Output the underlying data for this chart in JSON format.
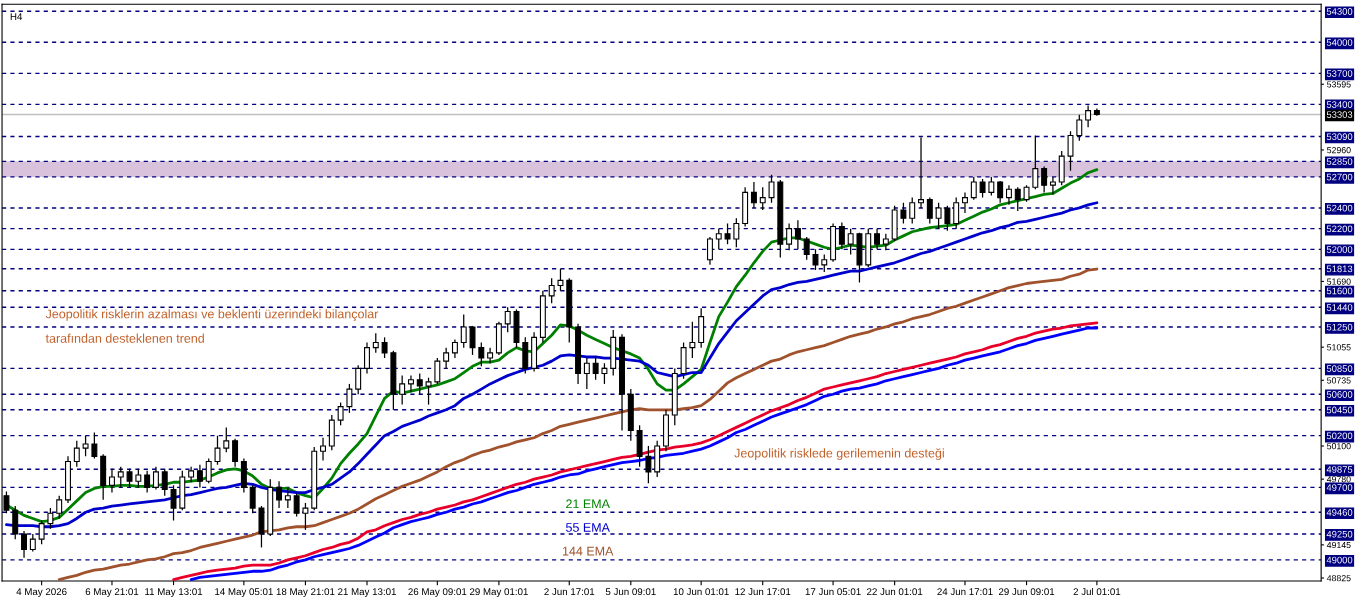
{
  "chart_data": {
    "type": "candlestick",
    "title": "H4",
    "categories": [
      null,
      null,
      null,
      null,
      "4 May 2026",
      null,
      null,
      null,
      null,
      null,
      null,
      null,
      "6 May 21:01",
      null,
      null,
      null,
      null,
      null,
      null,
      "11 May 13:01",
      null,
      null,
      null,
      null,
      null,
      null,
      null,
      "14 May 05:01",
      null,
      null,
      null,
      null,
      null,
      null,
      "18 May 21:01",
      null,
      null,
      null,
      null,
      null,
      null,
      "21 May 13:01",
      null,
      null,
      null,
      null,
      null,
      null,
      null,
      "26 May 09:01",
      null,
      null,
      null,
      null,
      null,
      null,
      "29 May 01:01",
      null,
      null,
      null,
      null,
      null,
      null,
      null,
      "2 Jun 17:01",
      null,
      null,
      null,
      null,
      null,
      null,
      "5 Jun 09:01",
      null,
      null,
      null,
      null,
      null,
      null,
      null,
      "10 Jun 01:01",
      null,
      null,
      null,
      null,
      null,
      null,
      "12 Jun 17:01",
      null,
      null,
      null,
      null,
      null,
      null,
      null,
      "17 Jun 05:01",
      null,
      null,
      null,
      null,
      null,
      null,
      "22 Jun 01:01",
      null,
      null,
      null,
      null,
      null,
      null,
      null,
      "24 Jun 17:01",
      null,
      null,
      null,
      null,
      null,
      null,
      "29 Jun 09:01",
      null,
      null,
      null,
      null,
      null,
      null,
      null,
      "2 Jul 01:01"
    ],
    "ohlc": [
      [
        49620,
        49660,
        49450,
        49480
      ],
      [
        49480,
        49520,
        49200,
        49250
      ],
      [
        49250,
        49280,
        49020,
        49100
      ],
      [
        49100,
        49250,
        49080,
        49200
      ],
      [
        49200,
        49380,
        49150,
        49350
      ],
      [
        49350,
        49500,
        49300,
        49450
      ],
      [
        49450,
        49620,
        49400,
        49580
      ],
      [
        49580,
        50000,
        49550,
        49950
      ],
      [
        49950,
        50150,
        49900,
        50080
      ],
      [
        50080,
        50200,
        50000,
        50120
      ],
      [
        50120,
        50230,
        49980,
        50000
      ],
      [
        50000,
        50020,
        49580,
        49720
      ],
      [
        49720,
        49880,
        49650,
        49800
      ],
      [
        49800,
        49900,
        49700,
        49850
      ],
      [
        49850,
        49880,
        49700,
        49760
      ],
      [
        49760,
        49880,
        49700,
        49820
      ],
      [
        49820,
        49860,
        49650,
        49700
      ],
      [
        49700,
        49900,
        49680,
        49850
      ],
      [
        49850,
        49880,
        49620,
        49680
      ],
      [
        49680,
        49720,
        49380,
        49500
      ],
      [
        49500,
        49860,
        49480,
        49800
      ],
      [
        49800,
        49900,
        49750,
        49860
      ],
      [
        49860,
        49920,
        49700,
        49760
      ],
      [
        49760,
        49980,
        49740,
        49950
      ],
      [
        49950,
        50200,
        49920,
        50080
      ],
      [
        50080,
        50280,
        50040,
        50150
      ],
      [
        50150,
        50170,
        49900,
        49950
      ],
      [
        49950,
        49980,
        49650,
        49700
      ],
      [
        49700,
        49720,
        49450,
        49500
      ],
      [
        49500,
        49520,
        49120,
        49250
      ],
      [
        49250,
        49780,
        49230,
        49700
      ],
      [
        49700,
        49760,
        49500,
        49580
      ],
      [
        49580,
        49700,
        49500,
        49620
      ],
      [
        49620,
        49640,
        49420,
        49450
      ],
      [
        49450,
        49550,
        49290,
        49500
      ],
      [
        49500,
        50090,
        49480,
        50050
      ],
      [
        50050,
        50180,
        49960,
        50100
      ],
      [
        50100,
        50400,
        50060,
        50350
      ],
      [
        50350,
        50520,
        50300,
        50480
      ],
      [
        50480,
        50700,
        50420,
        50650
      ],
      [
        50650,
        50880,
        50600,
        50850
      ],
      [
        50850,
        51100,
        50800,
        51050
      ],
      [
        51050,
        51190,
        51000,
        51100
      ],
      [
        51100,
        51150,
        50950,
        51000
      ],
      [
        51000,
        51020,
        50450,
        50600
      ],
      [
        50600,
        50780,
        50500,
        50700
      ],
      [
        50700,
        50780,
        50620,
        50740
      ],
      [
        50740,
        50800,
        50600,
        50680
      ],
      [
        50680,
        50760,
        50500,
        50720
      ],
      [
        50720,
        50950,
        50700,
        50920
      ],
      [
        50920,
        51050,
        50850,
        51000
      ],
      [
        51000,
        51130,
        50950,
        51100
      ],
      [
        51100,
        51370,
        51050,
        51250
      ],
      [
        51250,
        51260,
        50980,
        51050
      ],
      [
        51050,
        51100,
        50870,
        50950
      ],
      [
        50950,
        51050,
        50900,
        51000
      ],
      [
        51000,
        51300,
        50980,
        51280
      ],
      [
        51280,
        51440,
        51200,
        51400
      ],
      [
        51400,
        51420,
        51050,
        51100
      ],
      [
        51100,
        51150,
        50800,
        50850
      ],
      [
        50850,
        51200,
        50820,
        51150
      ],
      [
        51150,
        51600,
        51100,
        51550
      ],
      [
        51550,
        51720,
        51480,
        51650
      ],
      [
        51650,
        51810,
        51600,
        51700
      ],
      [
        51700,
        51720,
        51100,
        51250
      ],
      [
        51250,
        51280,
        50700,
        50800
      ],
      [
        50800,
        50950,
        50650,
        50900
      ],
      [
        50900,
        50970,
        50740,
        50800
      ],
      [
        50800,
        50900,
        50700,
        50850
      ],
      [
        50850,
        51220,
        50780,
        51150
      ],
      [
        51150,
        51180,
        50250,
        50600
      ],
      [
        50600,
        50650,
        50150,
        50250
      ],
      [
        50250,
        50300,
        49900,
        50000
      ],
      [
        50000,
        50100,
        49740,
        49850
      ],
      [
        49850,
        50150,
        49800,
        50100
      ],
      [
        50100,
        50450,
        50050,
        50400
      ],
      [
        50400,
        50850,
        50300,
        50800
      ],
      [
        50800,
        51100,
        50750,
        51050
      ],
      [
        51050,
        51300,
        50950,
        51100
      ],
      [
        51100,
        51430,
        51050,
        51350
      ],
      [
        51900,
        52120,
        51850,
        52100
      ],
      [
        52100,
        52200,
        52000,
        52150
      ],
      [
        52150,
        52250,
        52050,
        52100
      ],
      [
        52100,
        52300,
        52020,
        52250
      ],
      [
        52250,
        52600,
        52220,
        52550
      ],
      [
        52550,
        52650,
        52400,
        52450
      ],
      [
        52450,
        52600,
        52380,
        52500
      ],
      [
        52500,
        52720,
        52450,
        52650
      ],
      [
        52650,
        52670,
        51920,
        52050
      ],
      [
        52050,
        52250,
        51990,
        52200
      ],
      [
        52200,
        52280,
        52000,
        52100
      ],
      [
        52100,
        52120,
        51900,
        51950
      ],
      [
        51950,
        52000,
        51800,
        51850
      ],
      [
        51850,
        51950,
        51780,
        51900
      ],
      [
        51900,
        52250,
        51880,
        52220
      ],
      [
        52220,
        52260,
        52000,
        52050
      ],
      [
        52050,
        52200,
        51950,
        52150
      ],
      [
        52150,
        52160,
        51680,
        51850
      ],
      [
        51850,
        52200,
        51830,
        52150
      ],
      [
        52150,
        52200,
        52000,
        52050
      ],
      [
        52050,
        52150,
        51990,
        52100
      ],
      [
        52100,
        52420,
        52080,
        52380
      ],
      [
        52380,
        52450,
        52250,
        52300
      ],
      [
        52300,
        52500,
        52250,
        52450
      ],
      [
        52450,
        53080,
        52400,
        52480
      ],
      [
        52480,
        52500,
        52250,
        52300
      ],
      [
        52300,
        52450,
        52200,
        52400
      ],
      [
        52400,
        52420,
        52180,
        52250
      ],
      [
        52250,
        52500,
        52200,
        52450
      ],
      [
        52450,
        52550,
        52350,
        52500
      ],
      [
        52500,
        52700,
        52480,
        52650
      ],
      [
        52650,
        52680,
        52500,
        52550
      ],
      [
        52550,
        52700,
        52520,
        52650
      ],
      [
        52650,
        52660,
        52450,
        52500
      ],
      [
        52500,
        52620,
        52430,
        52580
      ],
      [
        52580,
        52600,
        52370,
        52480
      ],
      [
        52480,
        52620,
        52460,
        52600
      ],
      [
        52600,
        53100,
        52580,
        52780
      ],
      [
        52780,
        52800,
        52550,
        52620
      ],
      [
        52620,
        52700,
        52530,
        52650
      ],
      [
        52650,
        52950,
        52620,
        52900
      ],
      [
        52900,
        53140,
        52760,
        53100
      ],
      [
        53100,
        53300,
        53050,
        53250
      ],
      [
        53250,
        53390,
        53180,
        53340
      ],
      [
        53340,
        53360,
        53290,
        53303
      ]
    ],
    "series": [
      {
        "name": "21 EMA",
        "type": "line",
        "color": "#008000",
        "values": [
          49530,
          49480,
          49430,
          49400,
          49370,
          49380,
          49410,
          49490,
          49570,
          49650,
          49690,
          49710,
          49710,
          49720,
          49720,
          49710,
          49710,
          49720,
          49730,
          49750,
          49750,
          49760,
          49770,
          49800,
          49840,
          49870,
          49880,
          49860,
          49810,
          49730,
          49690,
          49690,
          49690,
          49650,
          49620,
          49600,
          49690,
          49790,
          49930,
          50030,
          50120,
          50220,
          50390,
          50560,
          50630,
          50610,
          50630,
          50650,
          50670,
          50690,
          50720,
          50750,
          50810,
          50870,
          50910,
          50910,
          50930,
          51000,
          51050,
          51020,
          51010,
          51090,
          51170,
          51270,
          51260,
          51220,
          51170,
          51130,
          51090,
          51050,
          51020,
          50990,
          50950,
          50840,
          50700,
          50640,
          50640,
          50700,
          50770,
          50840,
          51100,
          51350,
          51490,
          51640,
          51750,
          51870,
          51980,
          52070,
          52090,
          52110,
          52110,
          52080,
          52050,
          52020,
          52000,
          52020,
          52040,
          52030,
          52020,
          52030,
          52040,
          52090,
          52130,
          52170,
          52190,
          52210,
          52220,
          52230,
          52240,
          52280,
          52320,
          52360,
          52390,
          52430,
          52450,
          52470,
          52490,
          52510,
          52530,
          52540,
          52590,
          52640,
          52680,
          52740,
          52770
        ]
      },
      {
        "name": "55 EMA",
        "type": "line",
        "color": "#0000cc",
        "values": [
          49340,
          49330,
          49330,
          49330,
          49320,
          49320,
          49330,
          49350,
          49400,
          49460,
          49490,
          49500,
          49520,
          49530,
          49540,
          49550,
          49560,
          49570,
          49580,
          49600,
          49620,
          49630,
          49650,
          49670,
          49690,
          49700,
          49720,
          49740,
          49730,
          49700,
          49680,
          49670,
          49660,
          49650,
          49650,
          49680,
          49700,
          49730,
          49790,
          49850,
          49930,
          50020,
          50110,
          50200,
          50240,
          50290,
          50320,
          50350,
          50390,
          50420,
          50450,
          50490,
          50560,
          50600,
          50650,
          50700,
          50740,
          50780,
          50810,
          50840,
          50860,
          50880,
          50920,
          50970,
          50980,
          50970,
          50960,
          50960,
          50950,
          50950,
          50940,
          50930,
          50920,
          50880,
          50810,
          50790,
          50770,
          50790,
          50810,
          50810,
          50950,
          51090,
          51200,
          51310,
          51390,
          51470,
          51550,
          51610,
          51630,
          51660,
          51680,
          51690,
          51710,
          51730,
          51750,
          51770,
          51790,
          51790,
          51810,
          51830,
          51850,
          51870,
          51900,
          51930,
          51960,
          51980,
          52010,
          52040,
          52070,
          52100,
          52130,
          52160,
          52180,
          52210,
          52230,
          52260,
          52270,
          52290,
          52310,
          52330,
          52350,
          52380,
          52400,
          52430,
          52450
        ]
      },
      {
        "name": "144 EMA",
        "type": "line",
        "color": "#a0522d",
        "values": [
          null,
          null,
          null,
          null,
          null,
          null,
          48810,
          48830,
          48850,
          48880,
          48900,
          48910,
          48930,
          48950,
          48960,
          48980,
          49000,
          49010,
          49030,
          49060,
          49070,
          49090,
          49120,
          49140,
          49160,
          49180,
          49200,
          49220,
          49240,
          49270,
          49280,
          49290,
          49310,
          49320,
          49320,
          49330,
          49360,
          49390,
          49420,
          49450,
          49490,
          49540,
          49590,
          49630,
          49670,
          49710,
          49740,
          49770,
          49810,
          49850,
          49900,
          49940,
          49970,
          50010,
          50040,
          50060,
          50090,
          50110,
          50140,
          50160,
          50180,
          50220,
          50250,
          50290,
          50310,
          50330,
          50350,
          50370,
          50390,
          50410,
          50430,
          50450,
          50460,
          50450,
          50450,
          50450,
          50450,
          50460,
          50470,
          50490,
          50550,
          50630,
          50710,
          50760,
          50800,
          50840,
          50880,
          50920,
          50940,
          50980,
          51010,
          51030,
          51050,
          51070,
          51100,
          51130,
          51160,
          51180,
          51200,
          51230,
          51250,
          51280,
          51300,
          51330,
          51350,
          51370,
          51400,
          51430,
          51450,
          51480,
          51510,
          51540,
          51570,
          51600,
          51630,
          51650,
          51670,
          51680,
          51690,
          51700,
          51710,
          51740,
          51760,
          51800,
          51810
        ]
      },
      {
        "type": "line",
        "color": "#e8002a",
        "values": [
          null,
          null,
          null,
          null,
          null,
          null,
          null,
          null,
          null,
          null,
          null,
          null,
          null,
          null,
          null,
          null,
          null,
          null,
          null,
          48810,
          48830,
          48850,
          48870,
          48890,
          48900,
          48910,
          48920,
          48940,
          48950,
          48950,
          48950,
          48970,
          49000,
          49020,
          49040,
          49070,
          49100,
          49120,
          49150,
          49170,
          49210,
          49270,
          49290,
          49330,
          49360,
          49390,
          49410,
          49440,
          49460,
          49490,
          49510,
          49530,
          49560,
          49580,
          49610,
          49640,
          49670,
          49700,
          49730,
          49750,
          49780,
          49800,
          49820,
          49850,
          49870,
          49890,
          49910,
          49930,
          49950,
          49970,
          49990,
          50000,
          50020,
          50040,
          50060,
          50070,
          50090,
          50100,
          50110,
          50130,
          50160,
          50200,
          50240,
          50280,
          50320,
          50360,
          50400,
          50440,
          50470,
          50500,
          50540,
          50570,
          50610,
          50650,
          50670,
          50690,
          50710,
          50730,
          50750,
          50770,
          50800,
          50820,
          50840,
          50860,
          50880,
          50900,
          50920,
          50940,
          50960,
          50990,
          51010,
          51030,
          51060,
          51080,
          51110,
          51140,
          51160,
          51190,
          51210,
          51230,
          51240,
          51260,
          51270,
          51280,
          51290
        ]
      },
      {
        "type": "line",
        "color": "#0000ff",
        "values": [
          null,
          null,
          null,
          null,
          null,
          null,
          null,
          null,
          null,
          null,
          null,
          null,
          null,
          null,
          null,
          null,
          null,
          null,
          null,
          null,
          null,
          48810,
          48830,
          48840,
          48850,
          48860,
          48870,
          48880,
          48890,
          48890,
          48900,
          48930,
          48950,
          48980,
          49000,
          49030,
          49050,
          49070,
          49090,
          49110,
          49140,
          49180,
          49220,
          49260,
          49310,
          49340,
          49370,
          49390,
          49410,
          49440,
          49460,
          49490,
          49510,
          49540,
          49560,
          49590,
          49620,
          49650,
          49670,
          49700,
          49730,
          49750,
          49770,
          49800,
          49820,
          49830,
          49860,
          49880,
          49900,
          49920,
          49940,
          49950,
          49960,
          49980,
          49990,
          50010,
          50020,
          50030,
          50050,
          50070,
          50100,
          50140,
          50180,
          50230,
          50260,
          50300,
          50340,
          50380,
          50410,
          50440,
          50470,
          50500,
          50540,
          50580,
          50600,
          50630,
          50650,
          50660,
          50680,
          50700,
          50730,
          50750,
          50770,
          50790,
          50810,
          50830,
          50850,
          50880,
          50900,
          50930,
          50950,
          50970,
          50990,
          51010,
          51040,
          51070,
          51090,
          51120,
          51140,
          51160,
          51180,
          51200,
          51220,
          51240,
          51240
        ]
      }
    ],
    "ylim": [
      48796,
      54368
    ],
    "yticks": [
      53595,
      52960,
      51690,
      51055,
      50735,
      50100,
      49780,
      49145,
      48825
    ],
    "ref_lines": [
      {
        "axis": "y",
        "value": 54300,
        "label": "54300",
        "color": "#000080",
        "line_style": "dashed"
      },
      {
        "axis": "y",
        "value": 54000,
        "label": "54000",
        "color": "#000080",
        "line_style": "dashed"
      },
      {
        "axis": "y",
        "value": 53700,
        "label": "53700",
        "color": "#000080",
        "line_style": "dashed"
      },
      {
        "axis": "y",
        "value": 53400,
        "label": "53400",
        "color": "#000080",
        "line_style": "dashed"
      },
      {
        "axis": "y",
        "value": 53303,
        "label": "53303",
        "color": "#c0c0c0",
        "line_style": "solid"
      },
      {
        "axis": "y",
        "value": 53090,
        "label": "53090",
        "color": "#000080",
        "line_style": "dashed"
      },
      {
        "axis": "y",
        "value": 52850,
        "label": "52850",
        "color": "#000080",
        "line_style": "dashed"
      },
      {
        "axis": "y",
        "value": 52700,
        "label": "52700",
        "color": "#000080",
        "line_style": "dashed"
      },
      {
        "axis": "y",
        "value": 52400,
        "label": "52400",
        "color": "#000080",
        "line_style": "dashed"
      },
      {
        "axis": "y",
        "value": 52200,
        "label": "52200",
        "color": "#000080",
        "line_style": "dashed"
      },
      {
        "axis": "y",
        "value": 52000,
        "label": "52000",
        "color": "#000080",
        "line_style": "dashed"
      },
      {
        "axis": "y",
        "value": 51813,
        "label": "51813",
        "color": "#000080",
        "line_style": "dashed"
      },
      {
        "axis": "y",
        "value": 51600,
        "label": "51600",
        "color": "#000080",
        "line_style": "dashed"
      },
      {
        "axis": "y",
        "value": 51440,
        "label": "51440",
        "color": "#000080",
        "line_style": "dashed"
      },
      {
        "axis": "y",
        "value": 51250,
        "label": "51250",
        "color": "#000080",
        "line_style": "dashed"
      },
      {
        "axis": "y",
        "value": 50850,
        "label": "50850",
        "color": "#000080",
        "line_style": "dashed"
      },
      {
        "axis": "y",
        "value": 50600,
        "label": "50600",
        "color": "#000080",
        "line_style": "dashed"
      },
      {
        "axis": "y",
        "value": 50450,
        "label": "50450",
        "color": "#000080",
        "line_style": "dashed"
      },
      {
        "axis": "y",
        "value": 50200,
        "label": "50200",
        "color": "#000080",
        "line_style": "dashed"
      },
      {
        "axis": "y",
        "value": 49875,
        "label": "49875",
        "color": "#000080",
        "line_style": "dashed"
      },
      {
        "axis": "y",
        "value": 49700,
        "label": "49700",
        "color": "#000080",
        "line_style": "dashed"
      },
      {
        "axis": "y",
        "value": 49460,
        "label": "49460",
        "color": "#000080",
        "line_style": "dashed"
      },
      {
        "axis": "y",
        "value": 49250,
        "label": "49250",
        "color": "#000080",
        "line_style": "dashed"
      },
      {
        "axis": "y",
        "value": 49000,
        "label": "49000",
        "color": "#000080",
        "line_style": "dashed"
      }
    ],
    "bands": [
      {
        "axis": "y",
        "from": 52700,
        "to": 52850,
        "color": "#d8c2dc"
      }
    ],
    "annotations": [
      "Jeopolitik risklerin azalması ve beklenti üzerindeki bilançolar\ntarafından desteklenen trend",
      "Jeopolitik risklede gerilemenin desteği"
    ],
    "grid": false,
    "legend": false
  }
}
